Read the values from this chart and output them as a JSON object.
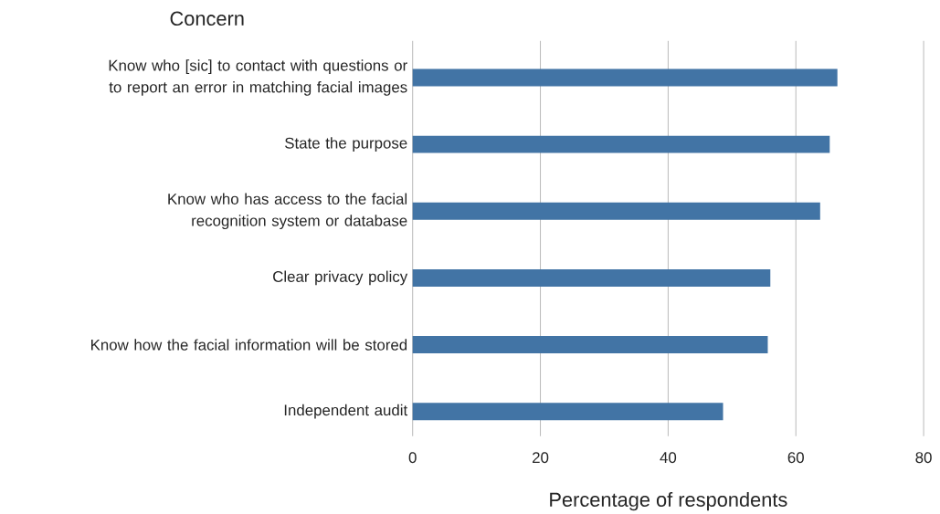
{
  "chart_data": {
    "type": "bar",
    "orientation": "horizontal",
    "ylabel": "Concern",
    "xlabel": "Percentage of respondents",
    "categories": [
      "Know who [sic] to contact with questions or to report an error in matching facial images",
      "State the purpose",
      "Know who has access to the facial recognition system or database",
      "Clear privacy policy",
      "Know how the facial information will be stored",
      "Independent audit"
    ],
    "values": [
      66.5,
      65.3,
      63.8,
      56.0,
      55.6,
      48.6
    ],
    "color": "#4274a5",
    "xlim": [
      0,
      80
    ],
    "xticks": [
      0,
      20,
      40,
      60,
      80
    ],
    "grid": "x"
  }
}
